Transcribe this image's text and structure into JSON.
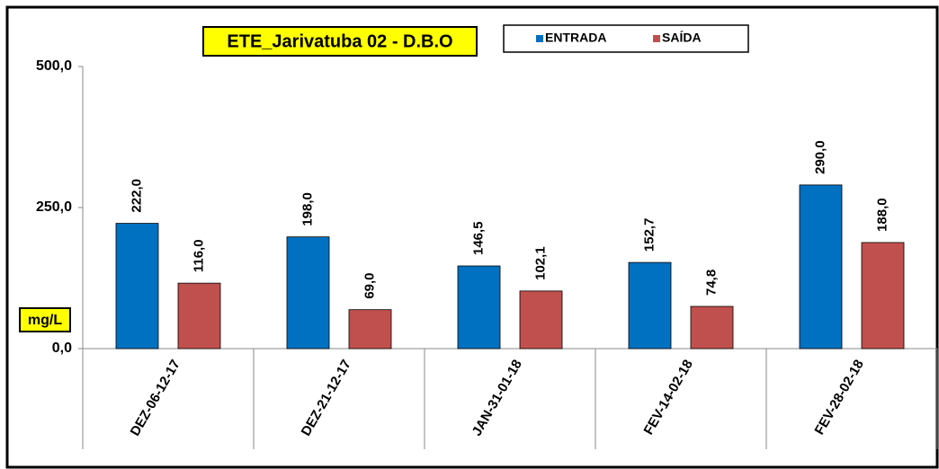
{
  "chart_data": {
    "type": "bar",
    "title": "ETE_Jarivatuba 02 - D.B.O",
    "y_label": "mg/L",
    "categories": [
      "DEZ-06-12-17",
      "DEZ-21-12-17",
      "JAN-31-01-18",
      "FEV-14-02-18",
      "FEV-28-02-18"
    ],
    "series": [
      {
        "name": "ENTRADA",
        "color": "#0070c0",
        "values": [
          222,
          198,
          146.5,
          152.7,
          290
        ],
        "value_labels": [
          "222,0",
          "198,0",
          "146,5",
          "152,7",
          "290,0"
        ]
      },
      {
        "name": "SAÍDA",
        "color": "#c0504d",
        "values": [
          116,
          69,
          102.1,
          74.8,
          188
        ],
        "value_labels": [
          "116,0",
          "69,0",
          "102,1",
          "74,8",
          "188,0"
        ]
      }
    ],
    "ylim": [
      0,
      500
    ],
    "yticks": [
      {
        "value": 0,
        "label": "0,0"
      },
      {
        "value": 250,
        "label": "250,0"
      },
      {
        "value": 500,
        "label": "500,0"
      }
    ],
    "legend": "top"
  }
}
